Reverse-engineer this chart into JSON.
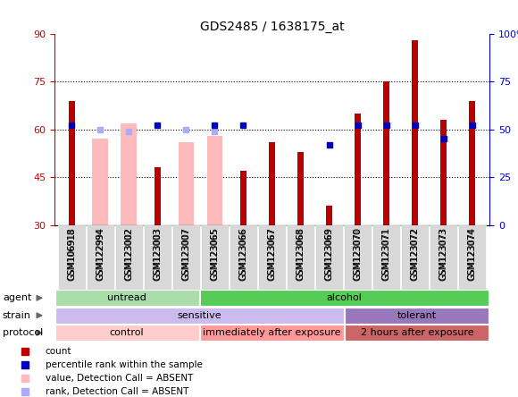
{
  "title": "GDS2485 / 1638175_at",
  "samples": [
    "GSM106918",
    "GSM122994",
    "GSM123002",
    "GSM123003",
    "GSM123007",
    "GSM123065",
    "GSM123066",
    "GSM123067",
    "GSM123068",
    "GSM123069",
    "GSM123070",
    "GSM123071",
    "GSM123072",
    "GSM123073",
    "GSM123074"
  ],
  "count_values": [
    69,
    0,
    0,
    48,
    0,
    0,
    47,
    56,
    53,
    36,
    65,
    75,
    88,
    63,
    69
  ],
  "percentile_values": [
    52,
    0,
    0,
    52,
    0,
    52,
    52,
    0,
    0,
    42,
    52,
    52,
    52,
    45,
    52
  ],
  "absent_value_bars": [
    0,
    57,
    62,
    0,
    56,
    58,
    0,
    0,
    0,
    0,
    0,
    0,
    0,
    0,
    0
  ],
  "absent_rank_bars": [
    0,
    50,
    49,
    0,
    50,
    49,
    0,
    0,
    0,
    0,
    0,
    0,
    0,
    0,
    0
  ],
  "ylim": [
    30,
    90
  ],
  "yticks": [
    30,
    45,
    60,
    75,
    90
  ],
  "right_ylim": [
    0,
    100
  ],
  "right_yticks": [
    0,
    25,
    50,
    75,
    100
  ],
  "bar_color": "#bb0000",
  "absent_bar_color": "#ffbbbb",
  "percentile_color": "#0000bb",
  "absent_rank_color": "#aaaaff",
  "agent_groups": [
    {
      "label": "untread",
      "start": 0,
      "end": 5,
      "color": "#aaddaa"
    },
    {
      "label": "alcohol",
      "start": 5,
      "end": 15,
      "color": "#55cc55"
    }
  ],
  "strain_groups": [
    {
      "label": "sensitive",
      "start": 0,
      "end": 10,
      "color": "#ccbbee"
    },
    {
      "label": "tolerant",
      "start": 10,
      "end": 15,
      "color": "#9977bb"
    }
  ],
  "protocol_groups": [
    {
      "label": "control",
      "start": 0,
      "end": 5,
      "color": "#ffcccc"
    },
    {
      "label": "immediately after exposure",
      "start": 5,
      "end": 10,
      "color": "#ff9999"
    },
    {
      "label": "2 hours after exposure",
      "start": 10,
      "end": 15,
      "color": "#cc6666"
    }
  ],
  "legend_items": [
    {
      "label": "count",
      "color": "#bb0000"
    },
    {
      "label": "percentile rank within the sample",
      "color": "#0000bb"
    },
    {
      "label": "value, Detection Call = ABSENT",
      "color": "#ffbbbb"
    },
    {
      "label": "rank, Detection Call = ABSENT",
      "color": "#aaaaff"
    }
  ],
  "left_axis_color": "#cc0000",
  "right_axis_color": "#0000cc",
  "row_labels": [
    "agent",
    "strain",
    "protocol"
  ]
}
